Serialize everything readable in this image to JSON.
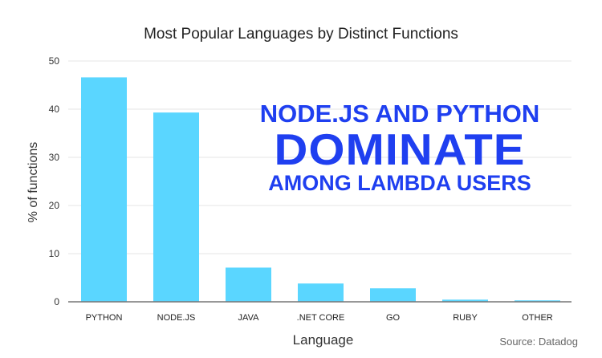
{
  "chart_data": {
    "type": "bar",
    "title": "Most Popular Languages by Distinct Functions",
    "xlabel": "Language",
    "ylabel": "% of functions",
    "categories": [
      "PYTHON",
      "NODE.JS",
      "JAVA",
      ".NET CORE",
      "GO",
      "RUBY",
      "OTHER"
    ],
    "values": [
      46.6,
      39.3,
      7.1,
      3.8,
      2.8,
      0.45,
      0.3
    ],
    "ylim": [
      0,
      50
    ],
    "yticks": [
      0,
      10,
      20,
      30,
      40,
      50
    ],
    "grid": true,
    "bar_color": "#5ad6ff",
    "annotation": {
      "line1": "NODE.JS AND PYTHON",
      "line2": "DOMINATE",
      "line3": "AMONG LAMBDA USERS",
      "color": "#1f3ff0"
    },
    "source": "Source: Datadog"
  }
}
